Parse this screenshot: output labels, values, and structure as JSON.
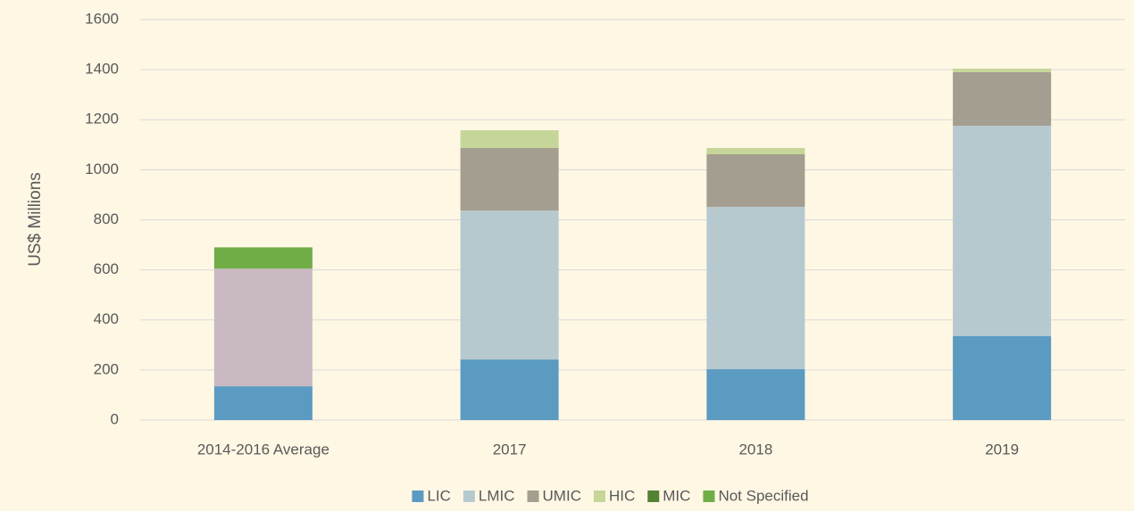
{
  "chart_data": {
    "type": "stacked_bar",
    "y_label": "US$ Millions",
    "categories": [
      "2014-2016 Average",
      "2017",
      "2018",
      "2019"
    ],
    "series": [
      {
        "name": "LIC",
        "color": "#5b9bc2",
        "values": [
          135,
          242,
          203,
          335
        ]
      },
      {
        "name": "LMIC",
        "color": "#b6c9cf",
        "values": [
          null,
          595,
          649,
          841
        ]
      },
      {
        "name": "UMIC",
        "color": "#a39e8f",
        "values": [
          null,
          250,
          210,
          214
        ]
      },
      {
        "name": "HIC",
        "color": "#c5d698",
        "values": [
          null,
          71,
          25,
          14
        ]
      },
      {
        "name": "MIC",
        "color": "#548235",
        "bar_color": "#c9b9c3",
        "values": [
          470,
          null,
          null,
          null
        ]
      },
      {
        "name": "Not Specified",
        "color": "#70ad47",
        "values": [
          85,
          null,
          null,
          null
        ]
      }
    ],
    "ylim": [
      0,
      1600
    ],
    "yticks": [
      0,
      200,
      400,
      600,
      800,
      1000,
      1200,
      1400,
      1600
    ],
    "grid": true,
    "legend": "bottom"
  }
}
